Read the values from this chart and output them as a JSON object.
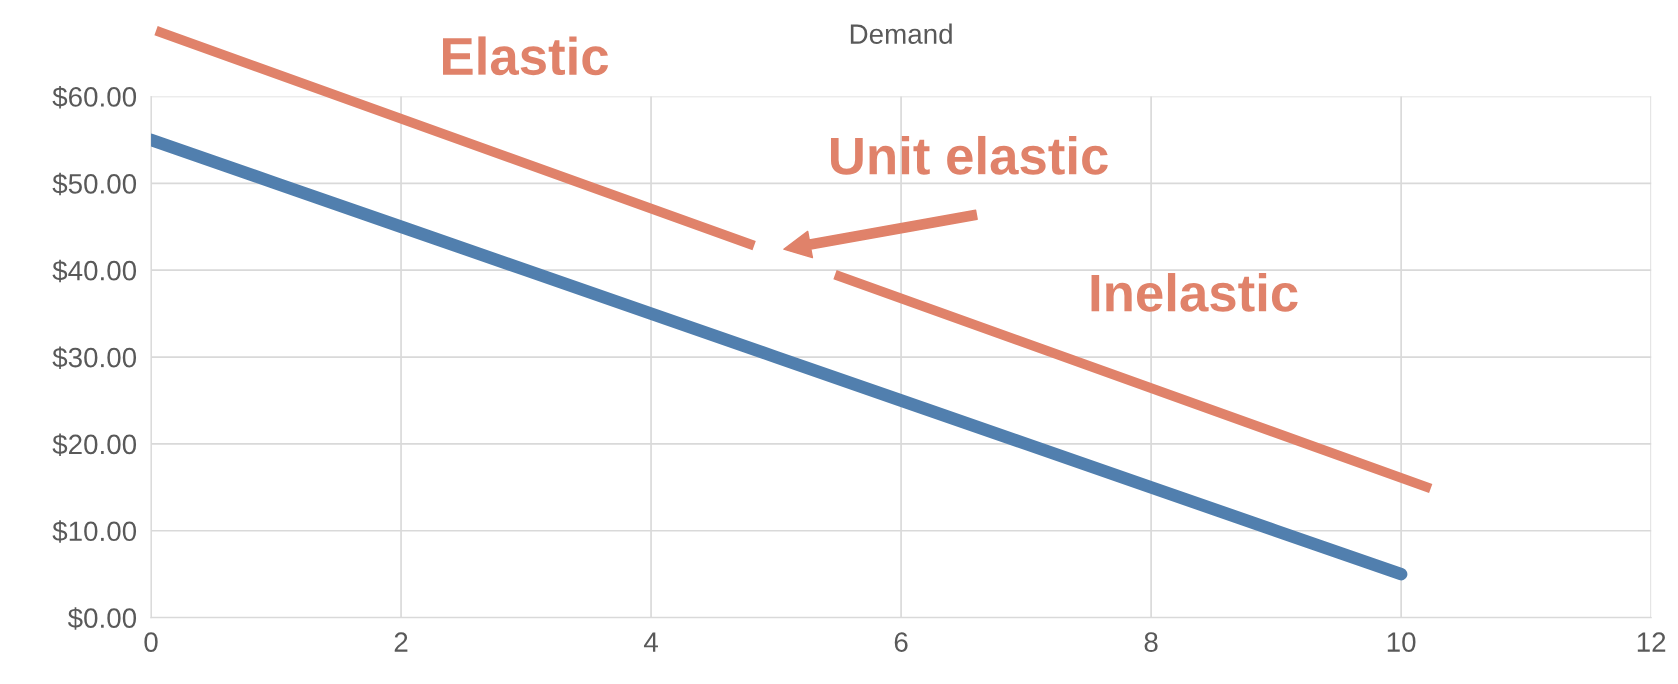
{
  "chart_data": {
    "type": "line",
    "title": "Demand",
    "x": [
      0,
      1,
      2,
      3,
      4,
      5,
      6,
      7,
      8,
      9,
      10
    ],
    "series": [
      {
        "color": "#517fae",
        "values": [
          55,
          50,
          45,
          40,
          35,
          30,
          25,
          20,
          15,
          10,
          5
        ]
      }
    ],
    "xlim": [
      0,
      12
    ],
    "xticks": [
      0,
      2,
      4,
      6,
      8,
      10,
      12
    ],
    "ylim": [
      0,
      60
    ],
    "yticks": [
      {
        "value": 0,
        "label": "$0.00"
      },
      {
        "value": 10,
        "label": "$10.00"
      },
      {
        "value": 20,
        "label": "$20.00"
      },
      {
        "value": 30,
        "label": "$30.00"
      },
      {
        "value": 40,
        "label": "$40.00"
      },
      {
        "value": 50,
        "label": "$50.00"
      },
      {
        "value": 60,
        "label": "$60.00"
      }
    ],
    "grid": true,
    "legend": false,
    "line_style": "solid",
    "annotations": [
      "Elastic",
      "Unit elastic",
      "Inelastic"
    ]
  }
}
